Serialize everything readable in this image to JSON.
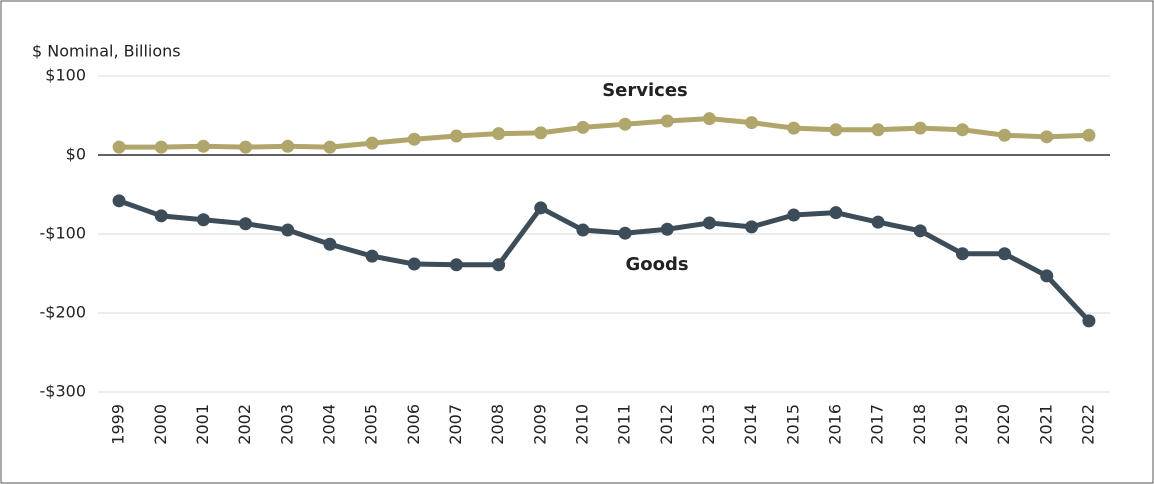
{
  "chart_data": {
    "type": "line",
    "y_axis_label": "$ Nominal, Billions",
    "categories": [
      "1999",
      "2000",
      "2001",
      "2002",
      "2003",
      "2004",
      "2005",
      "2006",
      "2007",
      "2008",
      "2009",
      "2010",
      "2011",
      "2012",
      "2013",
      "2014",
      "2015",
      "2016",
      "2017",
      "2018",
      "2019",
      "2020",
      "2021",
      "2022"
    ],
    "series": [
      {
        "name": "Services",
        "color": "#b0a66c",
        "values": [
          10,
          10,
          11,
          10,
          11,
          10,
          15,
          20,
          24,
          27,
          28,
          35,
          39,
          43,
          46,
          41,
          34,
          32,
          32,
          34,
          32,
          25,
          23,
          25
        ]
      },
      {
        "name": "Goods",
        "color": "#3c4d59",
        "values": [
          -58,
          -77,
          -82,
          -87,
          -95,
          -113,
          -128,
          -138,
          -139,
          -139,
          -67,
          -95,
          -99,
          -94,
          -86,
          -91,
          -76,
          -73,
          -85,
          -96,
          -125,
          -125,
          -153,
          -210
        ]
      }
    ],
    "ylim": [
      -300,
      100
    ],
    "yticks": [
      {
        "value": -300,
        "label": "-$300"
      },
      {
        "value": -200,
        "label": "-$200"
      },
      {
        "value": -100,
        "label": "-$100"
      },
      {
        "value": 0,
        "label": "$0"
      },
      {
        "value": 100,
        "label": "$100"
      }
    ],
    "grid": true
  }
}
